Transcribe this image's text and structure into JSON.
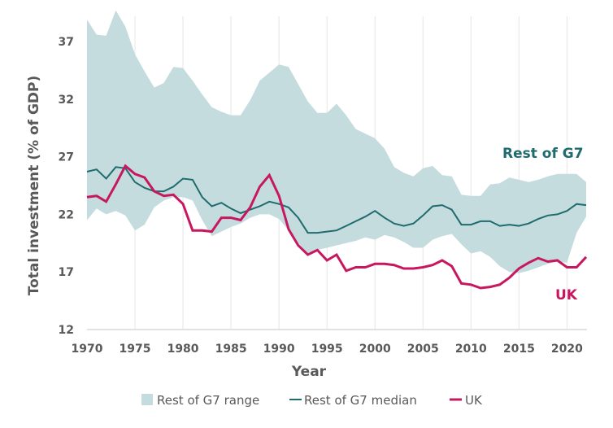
{
  "chart_data": {
    "type": "line",
    "xlabel": "Year",
    "ylabel": "Total investment (% of GDP)",
    "xlim": [
      1970,
      2022
    ],
    "ylim": [
      12,
      39.9
    ],
    "xticks": [
      1970,
      1975,
      1980,
      1985,
      1990,
      1995,
      2000,
      2005,
      2010,
      2015,
      2020
    ],
    "yticks": [
      12,
      17,
      22,
      27,
      32,
      37
    ],
    "grid": "vertical",
    "legend_position": "bottom",
    "x": [
      1970,
      1971,
      1972,
      1973,
      1974,
      1975,
      1976,
      1977,
      1978,
      1979,
      1980,
      1981,
      1982,
      1983,
      1984,
      1985,
      1986,
      1987,
      1988,
      1989,
      1990,
      1991,
      1992,
      1993,
      1994,
      1995,
      1996,
      1997,
      1998,
      1999,
      2000,
      2001,
      2002,
      2003,
      2004,
      2005,
      2006,
      2007,
      2008,
      2009,
      2010,
      2011,
      2012,
      2013,
      2014,
      2015,
      2016,
      2017,
      2018,
      2019,
      2020,
      2021,
      2022
    ],
    "band": {
      "name": "Rest of G7 range",
      "color": "#c5dcdf",
      "upper": [
        38.9,
        37.6,
        37.5,
        39.7,
        38.3,
        35.9,
        34.4,
        33.0,
        33.4,
        34.8,
        34.7,
        33.6,
        32.4,
        31.3,
        30.9,
        30.6,
        30.6,
        31.9,
        33.6,
        34.3,
        35.0,
        34.8,
        33.3,
        31.8,
        30.8,
        30.8,
        31.6,
        30.6,
        29.4,
        29.0,
        28.6,
        27.7,
        26.1,
        25.6,
        25.3,
        26.0,
        26.2,
        25.4,
        25.3,
        23.7,
        23.6,
        23.6,
        24.6,
        24.7,
        25.2,
        25.0,
        24.8,
        25.0,
        25.3,
        25.5,
        25.5,
        25.5,
        24.8
      ],
      "lower": [
        21.5,
        22.5,
        22.0,
        22.3,
        21.9,
        20.6,
        21.1,
        22.6,
        23.2,
        23.5,
        23.5,
        23.2,
        21.5,
        20.1,
        20.5,
        20.9,
        21.2,
        21.7,
        22.0,
        22.0,
        21.6,
        20.6,
        19.5,
        18.6,
        18.9,
        19.1,
        19.3,
        19.5,
        19.7,
        20.0,
        19.8,
        20.2,
        20.0,
        19.6,
        19.1,
        19.1,
        19.8,
        20.1,
        20.3,
        19.4,
        18.6,
        18.8,
        18.3,
        17.5,
        17.0,
        16.9,
        17.1,
        17.4,
        17.7,
        17.9,
        17.8,
        20.4,
        21.8
      ]
    },
    "series": [
      {
        "name": "Rest of G7 median",
        "color": "#1f6b6e",
        "values": [
          25.7,
          25.9,
          25.1,
          26.1,
          26.0,
          24.8,
          24.3,
          24.0,
          24.0,
          24.4,
          25.1,
          25.0,
          23.5,
          22.7,
          23.0,
          22.5,
          22.1,
          22.4,
          22.7,
          23.1,
          22.9,
          22.6,
          21.7,
          20.4,
          20.4,
          20.5,
          20.6,
          21.0,
          21.4,
          21.8,
          22.3,
          21.7,
          21.2,
          21.0,
          21.2,
          21.9,
          22.7,
          22.8,
          22.4,
          21.1,
          21.1,
          21.4,
          21.4,
          21.0,
          21.1,
          21.0,
          21.2,
          21.6,
          21.9,
          22.0,
          22.3,
          22.9,
          22.8
        ]
      },
      {
        "name": "UK",
        "color": "#c7185f",
        "values": [
          23.5,
          23.6,
          23.1,
          24.6,
          26.2,
          25.5,
          25.2,
          24.0,
          23.6,
          23.7,
          22.9,
          20.6,
          20.6,
          20.5,
          21.7,
          21.7,
          21.5,
          22.6,
          24.4,
          25.4,
          23.6,
          20.7,
          19.3,
          18.5,
          18.9,
          18.0,
          18.5,
          17.1,
          17.4,
          17.4,
          17.7,
          17.7,
          17.6,
          17.3,
          17.3,
          17.4,
          17.6,
          18.0,
          17.5,
          16.0,
          15.9,
          15.6,
          15.7,
          15.9,
          16.5,
          17.3,
          17.8,
          18.2,
          17.9,
          18.0,
          17.4,
          17.4,
          18.3
        ]
      }
    ],
    "annotations": {
      "rest_of_g7": "Rest of G7",
      "uk": "UK"
    },
    "legend": [
      "Rest of G7 range",
      "Rest of G7 median",
      "UK"
    ]
  }
}
